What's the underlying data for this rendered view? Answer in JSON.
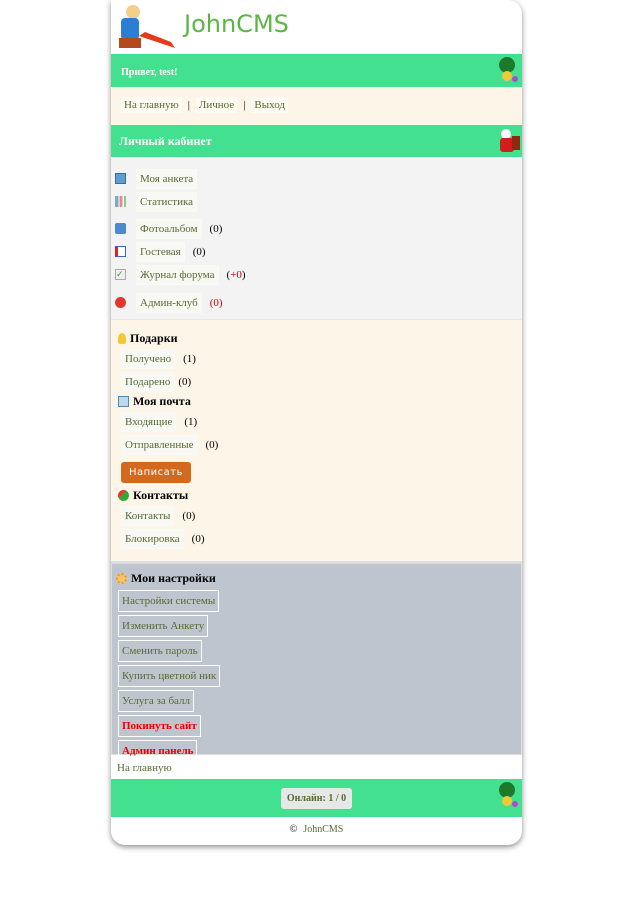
{
  "header": {
    "brand": "JohnCMS"
  },
  "greeting": "Привет, test!",
  "nav": [
    {
      "label": "На главную"
    },
    {
      "label": "Личное"
    },
    {
      "label": "Выход"
    }
  ],
  "nav_separator": "|",
  "section_title": "Личный кабинет",
  "menu": [
    {
      "label": "Моя анкета",
      "icon": "profile-icon"
    },
    {
      "label": "Статистика",
      "icon": "stats-icon"
    },
    {
      "label": "Фотоальбом",
      "count": "(0)",
      "icon": "photo-icon"
    },
    {
      "label": "Гостевая",
      "count": "(0)",
      "icon": "guestbook-icon"
    },
    {
      "label": "Журнал форума",
      "count": "(+0)",
      "icon": "journal-icon"
    },
    {
      "label": "Админ-клуб",
      "count": "(0)",
      "icon": "admin-club-icon"
    }
  ],
  "gifts": {
    "title": "Подарки",
    "items": [
      {
        "label": "Получено",
        "count": "(1)"
      },
      {
        "label": "Подарено",
        "count": "(0)"
      }
    ]
  },
  "mail": {
    "title": "Моя почта",
    "items": [
      {
        "label": "Входящие",
        "count": "(1)"
      },
      {
        "label": "Отправленные",
        "count": "(0)"
      }
    ],
    "write": "Написать"
  },
  "contacts": {
    "title": "Контакты",
    "items": [
      {
        "label": "Контакты",
        "count": "(0)"
      },
      {
        "label": "Блокировка",
        "count": "(0)"
      }
    ]
  },
  "settings": {
    "title": "Мои настройки",
    "items": [
      "Настройки системы",
      "Изменить Анкету",
      "Сменить пароль",
      "Купить цветной ник",
      "Услуга за балл",
      "Покинуть сайт",
      "Админ панель"
    ]
  },
  "home_link": "На главную",
  "online": "Онлайн: 1 / 0",
  "copyright": {
    "symbol": "©",
    "label": "JohnCMS"
  },
  "colors": {
    "bar": "#42e08f",
    "link": "#556b2f",
    "cream": "#fdf5e8",
    "settings_bg": "#bec5cf",
    "button": "#d2691e",
    "danger": "#e00000"
  }
}
